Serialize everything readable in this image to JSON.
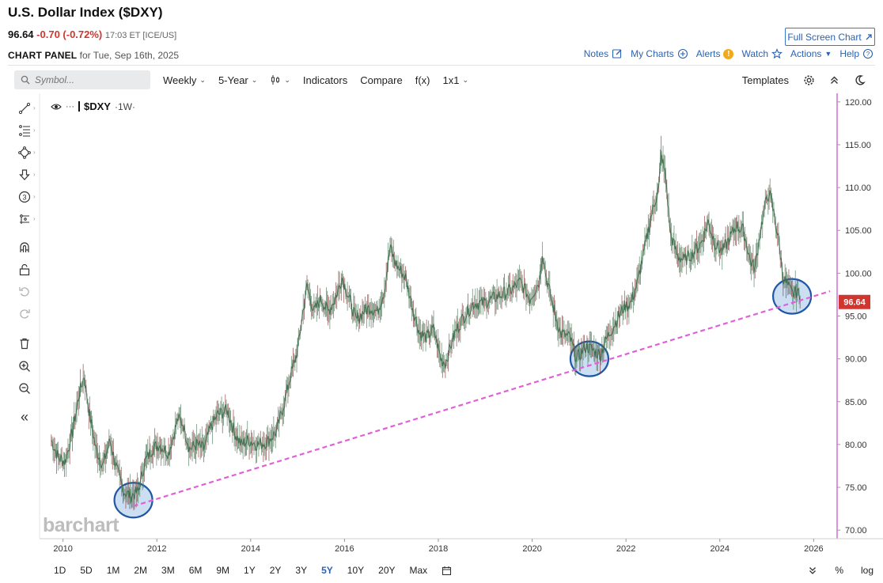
{
  "header": {
    "title": "U.S. Dollar Index ($DXY)",
    "price": "96.64",
    "change": "-0.70 (-0.72%)",
    "time_exchange": "17:03 ET [ICE/US]",
    "fullscreen_label": "Full Screen Chart",
    "panel_title": "CHART PANEL",
    "panel_date": "for Tue, Sep 16th, 2025"
  },
  "toplinks": {
    "notes": "Notes",
    "my_charts": "My Charts",
    "alerts": "Alerts",
    "watch": "Watch",
    "actions": "Actions",
    "help": "Help"
  },
  "toolbar": {
    "search_placeholder": "Symbol...",
    "interval": "Weekly",
    "period": "5-Year",
    "indicators": "Indicators",
    "compare": "Compare",
    "fx": "f(x)",
    "layout": "1x1",
    "templates": "Templates"
  },
  "legend": {
    "symbol": "$DXY",
    "timeframe": "·1W·"
  },
  "watermark": "barchart",
  "bottom": {
    "ranges": [
      "1D",
      "5D",
      "1M",
      "2M",
      "3M",
      "6M",
      "9M",
      "1Y",
      "2Y",
      "3Y",
      "5Y",
      "10Y",
      "20Y",
      "Max"
    ],
    "active_range": "5Y",
    "percent": "%",
    "log": "log"
  },
  "sidebar_icons": [
    "draw-line-icon",
    "fib-lines-icon",
    "shape-icon",
    "arrow-icon",
    "counter-icon",
    "pattern-icon",
    "magnet-icon",
    "unlock-icon",
    "undo-icon",
    "redo-icon",
    "trash-icon",
    "zoom-in-icon",
    "zoom-out-icon",
    "collapse-icon"
  ],
  "sidebar_counter": "3",
  "collapse_glyph": "«",
  "chart_data": {
    "type": "line",
    "series": [
      {
        "values": [
          [
            2009.75,
            80.5
          ],
          [
            2009.9,
            78.5
          ],
          [
            2010.05,
            78.0
          ],
          [
            2010.2,
            81.5
          ],
          [
            2010.35,
            86.0
          ],
          [
            2010.45,
            88.0
          ],
          [
            2010.55,
            84.0
          ],
          [
            2010.7,
            79.5
          ],
          [
            2010.85,
            77.5
          ],
          [
            2011.0,
            80.5
          ],
          [
            2011.15,
            77.0
          ],
          [
            2011.3,
            74.5
          ],
          [
            2011.45,
            74.0
          ],
          [
            2011.6,
            74.5
          ],
          [
            2011.75,
            78.0
          ],
          [
            2011.9,
            79.5
          ],
          [
            2012.05,
            80.0
          ],
          [
            2012.25,
            79.0
          ],
          [
            2012.45,
            83.0
          ],
          [
            2012.55,
            82.5
          ],
          [
            2012.7,
            79.5
          ],
          [
            2012.85,
            80.0
          ],
          [
            2013.0,
            79.5
          ],
          [
            2013.15,
            82.0
          ],
          [
            2013.3,
            83.5
          ],
          [
            2013.5,
            84.0
          ],
          [
            2013.65,
            81.5
          ],
          [
            2013.8,
            80.0
          ],
          [
            2013.95,
            80.5
          ],
          [
            2014.15,
            80.0
          ],
          [
            2014.35,
            80.3
          ],
          [
            2014.55,
            81.5
          ],
          [
            2014.7,
            84.5
          ],
          [
            2014.85,
            88.0
          ],
          [
            2015.0,
            91.0
          ],
          [
            2015.1,
            95.0
          ],
          [
            2015.2,
            98.5
          ],
          [
            2015.35,
            95.5
          ],
          [
            2015.5,
            97.0
          ],
          [
            2015.65,
            95.5
          ],
          [
            2015.8,
            97.0
          ],
          [
            2015.95,
            99.5
          ],
          [
            2016.1,
            97.0
          ],
          [
            2016.25,
            94.5
          ],
          [
            2016.4,
            95.5
          ],
          [
            2016.55,
            96.0
          ],
          [
            2016.7,
            95.5
          ],
          [
            2016.85,
            98.0
          ],
          [
            2016.97,
            103.0
          ],
          [
            2017.1,
            101.0
          ],
          [
            2017.3,
            99.5
          ],
          [
            2017.45,
            96.0
          ],
          [
            2017.6,
            93.0
          ],
          [
            2017.75,
            92.5
          ],
          [
            2017.9,
            93.5
          ],
          [
            2018.05,
            90.0
          ],
          [
            2018.15,
            89.5
          ],
          [
            2018.35,
            93.0
          ],
          [
            2018.55,
            95.0
          ],
          [
            2018.75,
            96.5
          ],
          [
            2018.95,
            96.5
          ],
          [
            2019.15,
            97.0
          ],
          [
            2019.35,
            97.5
          ],
          [
            2019.55,
            98.0
          ],
          [
            2019.75,
            99.0
          ],
          [
            2019.95,
            97.0
          ],
          [
            2020.15,
            99.0
          ],
          [
            2020.22,
            102.5
          ],
          [
            2020.3,
            99.5
          ],
          [
            2020.45,
            96.0
          ],
          [
            2020.6,
            93.0
          ],
          [
            2020.8,
            92.5
          ],
          [
            2020.95,
            90.0
          ],
          [
            2021.15,
            91.5
          ],
          [
            2021.3,
            91.0
          ],
          [
            2021.45,
            90.5
          ],
          [
            2021.6,
            92.5
          ],
          [
            2021.8,
            94.5
          ],
          [
            2021.95,
            96.0
          ],
          [
            2022.1,
            96.5
          ],
          [
            2022.25,
            99.0
          ],
          [
            2022.4,
            103.0
          ],
          [
            2022.55,
            107.0
          ],
          [
            2022.7,
            110.0
          ],
          [
            2022.75,
            114.0
          ],
          [
            2022.85,
            111.0
          ],
          [
            2022.95,
            104.5
          ],
          [
            2023.1,
            102.0
          ],
          [
            2023.25,
            101.5
          ],
          [
            2023.45,
            102.5
          ],
          [
            2023.6,
            103.5
          ],
          [
            2023.75,
            106.0
          ],
          [
            2023.9,
            103.5
          ],
          [
            2024.05,
            102.5
          ],
          [
            2024.2,
            104.0
          ],
          [
            2024.35,
            105.5
          ],
          [
            2024.5,
            105.0
          ],
          [
            2024.65,
            101.5
          ],
          [
            2024.75,
            100.5
          ],
          [
            2024.85,
            104.5
          ],
          [
            2024.95,
            107.5
          ],
          [
            2025.05,
            109.5
          ],
          [
            2025.15,
            107.0
          ],
          [
            2025.25,
            104.0
          ],
          [
            2025.35,
            99.5
          ],
          [
            2025.45,
            98.5
          ],
          [
            2025.55,
            97.5
          ],
          [
            2025.65,
            98.0
          ],
          [
            2025.71,
            96.64
          ]
        ]
      }
    ],
    "trendline": [
      [
        2011.5,
        72.8
      ],
      [
        2026.35,
        97.9
      ]
    ],
    "highlight_circles": [
      [
        2011.5,
        73.5
      ],
      [
        2021.22,
        90.0
      ],
      [
        2025.54,
        97.3
      ]
    ],
    "xlim": [
      2009.5,
      2026.5
    ],
    "ylim": [
      69.0,
      121.0
    ],
    "x_ticks": [
      "2010",
      "2012",
      "2014",
      "2016",
      "2018",
      "2020",
      "2022",
      "2024",
      "2026"
    ],
    "y_ticks": [
      "70.00",
      "75.00",
      "80.00",
      "85.00",
      "90.00",
      "95.00",
      "100.00",
      "105.00",
      "110.00",
      "115.00",
      "120.00"
    ],
    "last_price_label": "96.64",
    "colors": {
      "line": "#3a6b4a",
      "trendline": "#e060d8",
      "circle_fill": "#b9d3ee",
      "circle_stroke": "#1f57a6",
      "price_tag": "#d0362f",
      "axis": "#c54ac9"
    },
    "grid": false
  }
}
